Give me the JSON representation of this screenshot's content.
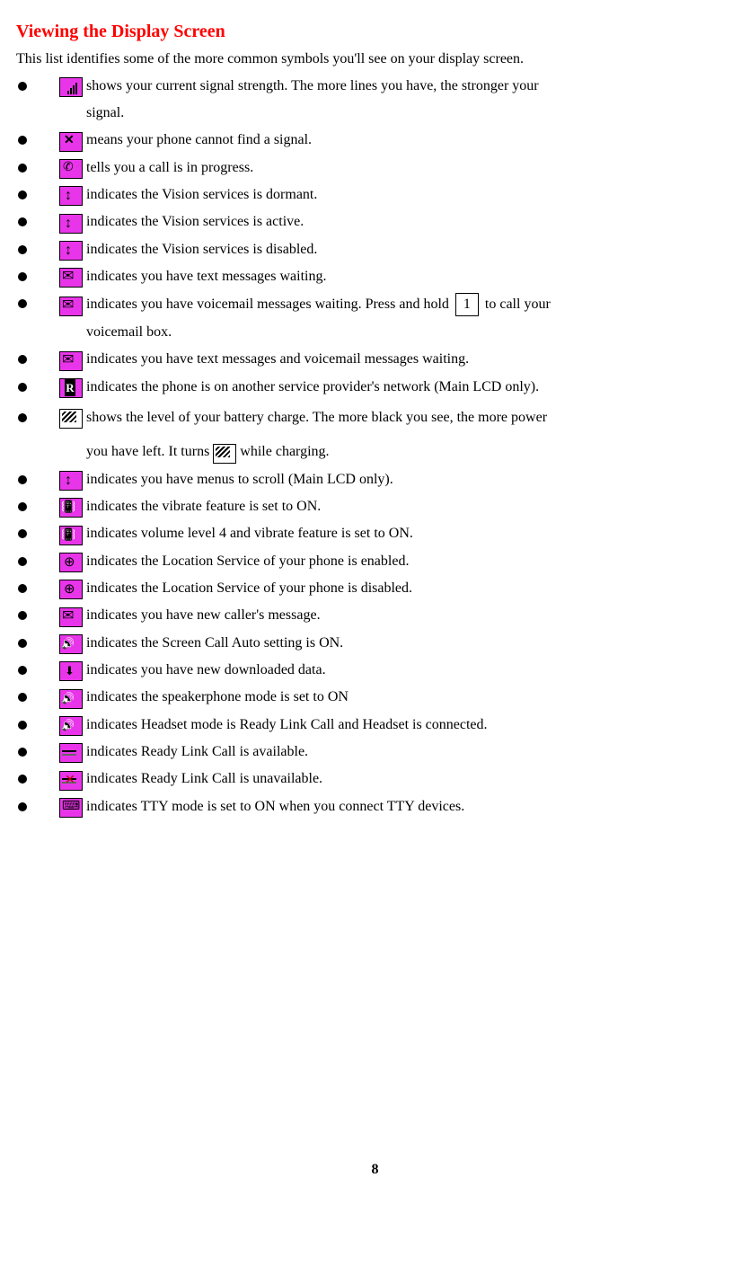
{
  "title": "Viewing the Display Screen",
  "intro": "This list identifies some of the more common symbols you'll see on your display screen.",
  "items": [
    {
      "icon": "signal-bars",
      "text": " shows your current signal strength. The more lines you have, the stronger your",
      "cont": "signal."
    },
    {
      "icon": "no-signal",
      "text": " means your phone cannot find a signal."
    },
    {
      "icon": "call",
      "text": " tells you a call is in progress."
    },
    {
      "icon": "arrows",
      "text": " indicates the Vision services is dormant."
    },
    {
      "icon": "arrows",
      "text": " indicates the Vision services is active."
    },
    {
      "icon": "arrows",
      "text": " indicates the Vision services is disabled."
    },
    {
      "icon": "envelope",
      "text": " indicates you have text messages waiting."
    },
    {
      "icon": "envelope",
      "text_pre": " indicates you have voicemail messages waiting. Press and hold ",
      "key": "1",
      "text_post": " to call your",
      "cont": "voicemail box."
    },
    {
      "icon": "envelope",
      "text": " indicates you have text messages and voicemail messages waiting."
    },
    {
      "icon": "roaming",
      "text": " indicates the phone is on another service provider's network (Main LCD only)."
    },
    {
      "icon": "battery",
      "text_pre": " shows the level of your battery charge. The more black you see, the more power",
      "cont_pre": "you have left. It turns ",
      "cont_icon": "battery",
      "cont_post": " while charging.",
      "spaced": true
    },
    {
      "icon": "arrows",
      "text": " indicates you have menus to scroll (Main LCD only)."
    },
    {
      "icon": "vibrate",
      "text": " indicates the vibrate feature is set to ON."
    },
    {
      "icon": "vibrate",
      "text": " indicates volume level 4 and vibrate feature is set to ON."
    },
    {
      "icon": "loc-on",
      "text": "  indicates the Location Service of your phone is enabled."
    },
    {
      "icon": "loc-on",
      "text": "  indicates the Location Service of your phone is disabled."
    },
    {
      "icon": "envelope",
      "text": " indicates you have new caller's message."
    },
    {
      "icon": "speaker",
      "text": " indicates the Screen Call Auto setting is ON."
    },
    {
      "icon": "download",
      "text": " indicates you have new downloaded data."
    },
    {
      "icon": "speaker",
      "text": " indicates the speakerphone mode is set to ON"
    },
    {
      "icon": "speaker",
      "text": " indicates Headset mode is Ready Link Call and Headset is connected."
    },
    {
      "icon": "ready-link",
      "text": " indicates Ready Link Call is available."
    },
    {
      "icon": "ready-link-off",
      "text": " indicates Ready Link Call is unavailable."
    },
    {
      "icon": "tty",
      "text": " indicates TTY mode is set to ON when you connect TTY devices."
    }
  ],
  "page_number": "8"
}
